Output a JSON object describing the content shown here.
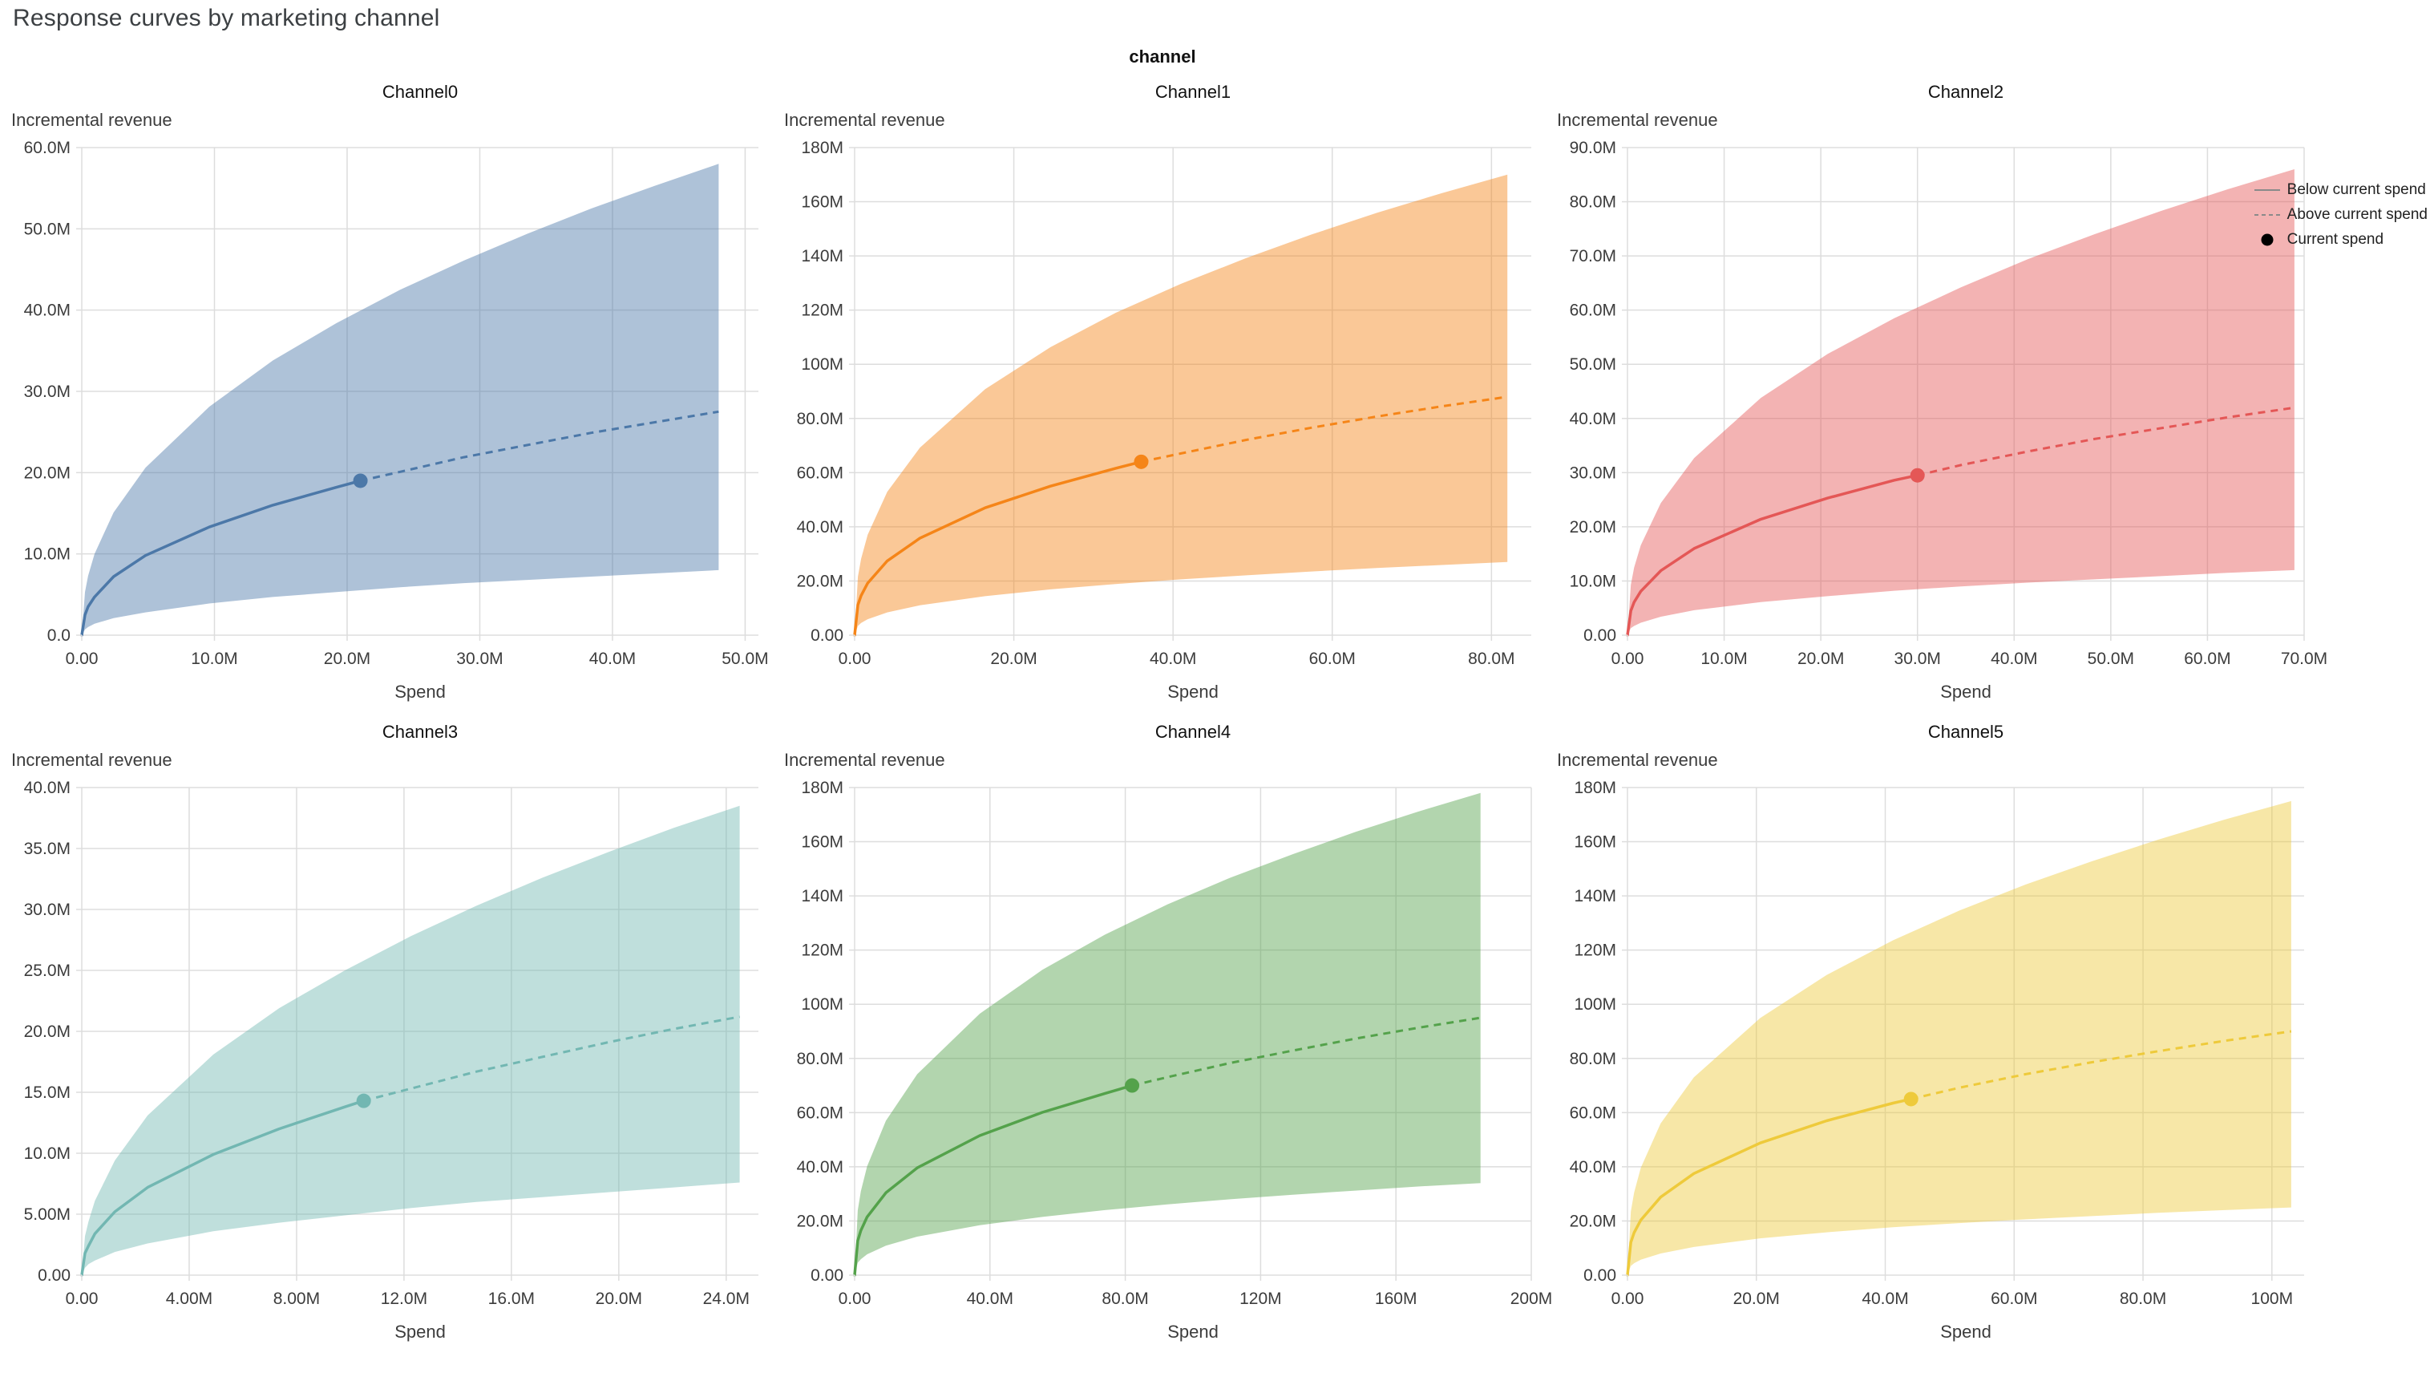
{
  "page": {
    "title": "Response curves by marketing channel",
    "facet_label": "channel"
  },
  "legend": {
    "items": [
      {
        "symbol": "solid-line",
        "label": "Below current spend"
      },
      {
        "symbol": "dashed-line",
        "label": "Above current spend"
      },
      {
        "symbol": "dot",
        "label": "Current spend"
      }
    ],
    "line_symbol_color": "#8a8a8a",
    "dot_symbol_color": "#000000"
  },
  "chart_data": {
    "type": "line",
    "title": "Response curves by marketing channel",
    "facet": "channel",
    "xlabel": "Spend",
    "ylabel": "Incremental revenue",
    "grid": true,
    "legend_position": "top-right",
    "units": "millions",
    "band_opacity": 0.45,
    "charts": [
      {
        "name": "Channel0",
        "color": "#4c78a8",
        "x_max": 51,
        "y_max": 60,
        "x_tick_values": [
          0,
          10,
          20,
          30,
          40,
          50
        ],
        "x_tick_labels": [
          "0.00",
          "10.0M",
          "20.0M",
          "30.0M",
          "40.0M",
          "50.0M"
        ],
        "y_tick_values": [
          0,
          10,
          20,
          30,
          40,
          50,
          60
        ],
        "y_tick_labels": [
          "0.0",
          "10.0M",
          "20.0M",
          "30.0M",
          "40.0M",
          "50.0M",
          "60.0M"
        ],
        "current_spend": {
          "x": 21,
          "y": 19
        },
        "curve": {
          "x": [
            0,
            0.24,
            0.48,
            0.96,
            2.4,
            4.8,
            9.6,
            14.4,
            19.2,
            24,
            28.8,
            33.6,
            38.4,
            43.2,
            48
          ],
          "mean": [
            0,
            2.5,
            3.5,
            4.7,
            7.2,
            9.8,
            13.3,
            16,
            18.2,
            20.1,
            21.9,
            23.4,
            24.9,
            26.2,
            27.5
          ],
          "upper": [
            0,
            5.3,
            7.3,
            10,
            15.1,
            20.6,
            28.1,
            33.8,
            38.4,
            42.5,
            46.1,
            49.4,
            52.5,
            55.3,
            58
          ],
          "lower": [
            0,
            0.7,
            1,
            1.4,
            2.1,
            2.8,
            3.9,
            4.7,
            5.3,
            5.9,
            6.4,
            6.8,
            7.2,
            7.6,
            8
          ]
        }
      },
      {
        "name": "Channel1",
        "color": "#f58518",
        "x_max": 85,
        "y_max": 180,
        "x_tick_values": [
          0,
          20,
          40,
          60,
          80
        ],
        "x_tick_labels": [
          "0.00",
          "20.0M",
          "40.0M",
          "60.0M",
          "80.0M"
        ],
        "y_tick_values": [
          0,
          20,
          40,
          60,
          80,
          100,
          120,
          140,
          160,
          180
        ],
        "y_tick_labels": [
          "0.00",
          "20.0M",
          "40.0M",
          "60.0M",
          "80.0M",
          "100M",
          "120M",
          "140M",
          "160M",
          "180M"
        ],
        "current_spend": {
          "x": 36,
          "y": 64
        },
        "curve": {
          "x": [
            0,
            0.41,
            0.82,
            1.64,
            4.1,
            8.2,
            16.4,
            24.6,
            32.8,
            41,
            49.2,
            57.4,
            65.6,
            73.8,
            82
          ],
          "mean": [
            0,
            11.2,
            14.6,
            19.2,
            27.4,
            35.8,
            47,
            55,
            61.6,
            67.1,
            72.1,
            76.6,
            80.7,
            84.5,
            88
          ],
          "upper": [
            0,
            21.6,
            28.2,
            37.1,
            52.9,
            69.2,
            90.8,
            106.3,
            119,
            129.7,
            139.2,
            147.9,
            155.9,
            163.2,
            170
          ],
          "lower": [
            0,
            3.4,
            4.5,
            5.9,
            8.4,
            11,
            14.4,
            16.9,
            18.9,
            20.6,
            22.1,
            23.5,
            24.8,
            25.9,
            27
          ]
        }
      },
      {
        "name": "Channel2",
        "color": "#e45756",
        "x_max": 70,
        "y_max": 90,
        "x_tick_values": [
          0,
          10,
          20,
          30,
          40,
          50,
          60,
          70
        ],
        "x_tick_labels": [
          "0.00",
          "10.0M",
          "20.0M",
          "30.0M",
          "40.0M",
          "50.0M",
          "60.0M",
          "70.0M"
        ],
        "y_tick_values": [
          0,
          10,
          20,
          30,
          40,
          50,
          60,
          70,
          80,
          90
        ],
        "y_tick_labels": [
          "0.00",
          "10.0M",
          "20.0M",
          "30.0M",
          "40.0M",
          "50.0M",
          "60.0M",
          "70.0M",
          "80.0M",
          "90.0M"
        ],
        "current_spend": {
          "x": 30,
          "y": 29.5
        },
        "curve": {
          "x": [
            0,
            0.35,
            0.69,
            1.38,
            3.45,
            6.9,
            13.8,
            20.7,
            27.6,
            34.5,
            41.4,
            48.3,
            55.2,
            62.1,
            69
          ],
          "mean": [
            0,
            4.5,
            6.1,
            8.1,
            11.9,
            16,
            21.4,
            25.3,
            28.6,
            31.4,
            33.9,
            36.2,
            38.2,
            40.2,
            42
          ],
          "upper": [
            0,
            9.3,
            12.5,
            16.6,
            24.4,
            32.7,
            43.8,
            51.9,
            58.5,
            64.2,
            69.4,
            74,
            78.3,
            82.3,
            86
          ],
          "lower": [
            0,
            1.3,
            1.7,
            2.3,
            3.4,
            4.6,
            6.1,
            7.2,
            8.2,
            9,
            9.7,
            10.3,
            10.9,
            11.5,
            12
          ]
        }
      },
      {
        "name": "Channel3",
        "color": "#72b7b2",
        "x_max": 25.2,
        "y_max": 40,
        "x_tick_values": [
          0,
          4,
          8,
          12,
          16,
          20,
          24
        ],
        "x_tick_labels": [
          "0.00",
          "4.00M",
          "8.00M",
          "12.0M",
          "16.0M",
          "20.0M",
          "24.0M"
        ],
        "y_tick_values": [
          0,
          5,
          10,
          15,
          20,
          25,
          30,
          35,
          40
        ],
        "y_tick_labels": [
          "0.00",
          "5.00M",
          "10.0M",
          "15.0M",
          "20.0M",
          "25.0M",
          "30.0M",
          "35.0M",
          "40.0M"
        ],
        "current_spend": {
          "x": 10.5,
          "y": 14.3
        },
        "curve": {
          "x": [
            0,
            0.12,
            0.25,
            0.49,
            1.23,
            2.45,
            4.9,
            7.35,
            9.8,
            12.25,
            14.7,
            17.15,
            19.6,
            22.05,
            24.5
          ],
          "mean": [
            0,
            1.8,
            2.4,
            3.4,
            5.2,
            7.2,
            9.9,
            12,
            13.8,
            15.3,
            16.7,
            17.9,
            19.1,
            20.2,
            21.2
          ],
          "upper": [
            0,
            3.2,
            4.4,
            6.1,
            9.4,
            13.1,
            18.1,
            21.9,
            25,
            27.8,
            30.3,
            32.6,
            34.7,
            36.7,
            38.5
          ],
          "lower": [
            0,
            0.6,
            0.9,
            1.2,
            1.9,
            2.6,
            3.6,
            4.3,
            4.9,
            5.5,
            6,
            6.4,
            6.8,
            7.2,
            7.6
          ]
        }
      },
      {
        "name": "Channel4",
        "color": "#54a24b",
        "x_max": 200,
        "y_max": 180,
        "x_tick_values": [
          0,
          40,
          80,
          120,
          160,
          200
        ],
        "x_tick_labels": [
          "0.00",
          "40.0M",
          "80.0M",
          "120M",
          "160M",
          "200M"
        ],
        "y_tick_values": [
          0,
          20,
          40,
          60,
          80,
          100,
          120,
          140,
          160,
          180
        ],
        "y_tick_labels": [
          "0.00",
          "20.0M",
          "40.0M",
          "60.0M",
          "80.0M",
          "100M",
          "120M",
          "140M",
          "160M",
          "180M"
        ],
        "current_spend": {
          "x": 82,
          "y": 70
        },
        "curve": {
          "x": [
            0,
            0.93,
            1.85,
            3.7,
            9.25,
            18.5,
            37,
            55.5,
            74,
            92.5,
            111,
            129.5,
            148,
            166.5,
            185
          ],
          "mean": [
            0,
            12.7,
            16.5,
            21.5,
            30.4,
            39.6,
            51.5,
            60.1,
            67.1,
            73.1,
            78.3,
            82.9,
            87.3,
            91.3,
            95
          ],
          "upper": [
            0,
            23.9,
            31,
            40.2,
            57,
            74.2,
            96.5,
            112.7,
            125.7,
            136.9,
            146.7,
            155.4,
            163.6,
            171.1,
            178
          ],
          "lower": [
            0,
            4.6,
            5.9,
            7.7,
            10.9,
            14.2,
            18.4,
            21.5,
            24,
            26.1,
            28,
            29.7,
            31.2,
            32.7,
            34
          ]
        }
      },
      {
        "name": "Channel5",
        "color": "#eeca3b",
        "x_max": 105,
        "y_max": 180,
        "x_tick_values": [
          0,
          20,
          40,
          60,
          80,
          100
        ],
        "x_tick_labels": [
          "0.00",
          "20.0M",
          "40.0M",
          "60.0M",
          "80.0M",
          "100M"
        ],
        "y_tick_values": [
          0,
          20,
          40,
          60,
          80,
          100,
          120,
          140,
          160,
          180
        ],
        "y_tick_labels": [
          "0.00",
          "20.0M",
          "40.0M",
          "60.0M",
          "80.0M",
          "100M",
          "120M",
          "140M",
          "160M",
          "180M"
        ],
        "current_spend": {
          "x": 44,
          "y": 65
        },
        "curve": {
          "x": [
            0,
            0.52,
            1.03,
            2.06,
            5.15,
            10.3,
            20.6,
            30.9,
            41.2,
            51.5,
            61.8,
            72.1,
            82.4,
            92.7,
            103
          ],
          "mean": [
            0,
            12.1,
            15.7,
            20.3,
            28.8,
            37.5,
            48.8,
            57,
            63.5,
            69.2,
            74.2,
            78.6,
            82.7,
            86.5,
            90
          ],
          "upper": [
            0,
            23.5,
            30.5,
            39.6,
            56,
            73,
            94.9,
            110.8,
            123.6,
            134.6,
            144.2,
            152.8,
            160.8,
            168.2,
            175
          ],
          "lower": [
            0,
            3.4,
            4.4,
            5.7,
            8,
            10.4,
            13.6,
            15.8,
            17.7,
            19.2,
            20.6,
            21.8,
            23,
            24,
            25
          ]
        }
      }
    ]
  }
}
